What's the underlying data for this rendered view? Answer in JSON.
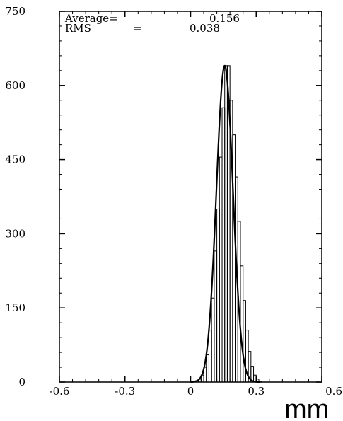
{
  "chart_data": {
    "type": "histogram",
    "xlabel": "mm",
    "ylabel": "",
    "xlim": [
      -0.6,
      0.6
    ],
    "ylim": [
      0,
      750
    ],
    "x_ticks": [
      "-0.6",
      "-0.3",
      "0",
      "0.3",
      "0.6"
    ],
    "y_ticks": [
      "0",
      "150",
      "300",
      "450",
      "600",
      "750"
    ],
    "x_tick_values": [
      -0.6,
      -0.3,
      0,
      0.3,
      0.6
    ],
    "y_tick_values": [
      0,
      150,
      300,
      450,
      600,
      750
    ],
    "stats": {
      "average_label": "Average=",
      "average_value": "0.156",
      "rms_label": "RMS",
      "rms_eq": "=",
      "rms_value": "0.038"
    },
    "bin_width": 0.012,
    "bin_start": 0.012,
    "values": [
      1,
      3,
      6,
      14,
      30,
      55,
      105,
      170,
      265,
      350,
      455,
      555,
      640,
      640,
      570,
      500,
      415,
      325,
      235,
      165,
      105,
      62,
      32,
      14,
      6,
      2
    ],
    "fit_curve": {
      "mean": 0.156,
      "sigma": 0.038,
      "peak": 640
    }
  }
}
